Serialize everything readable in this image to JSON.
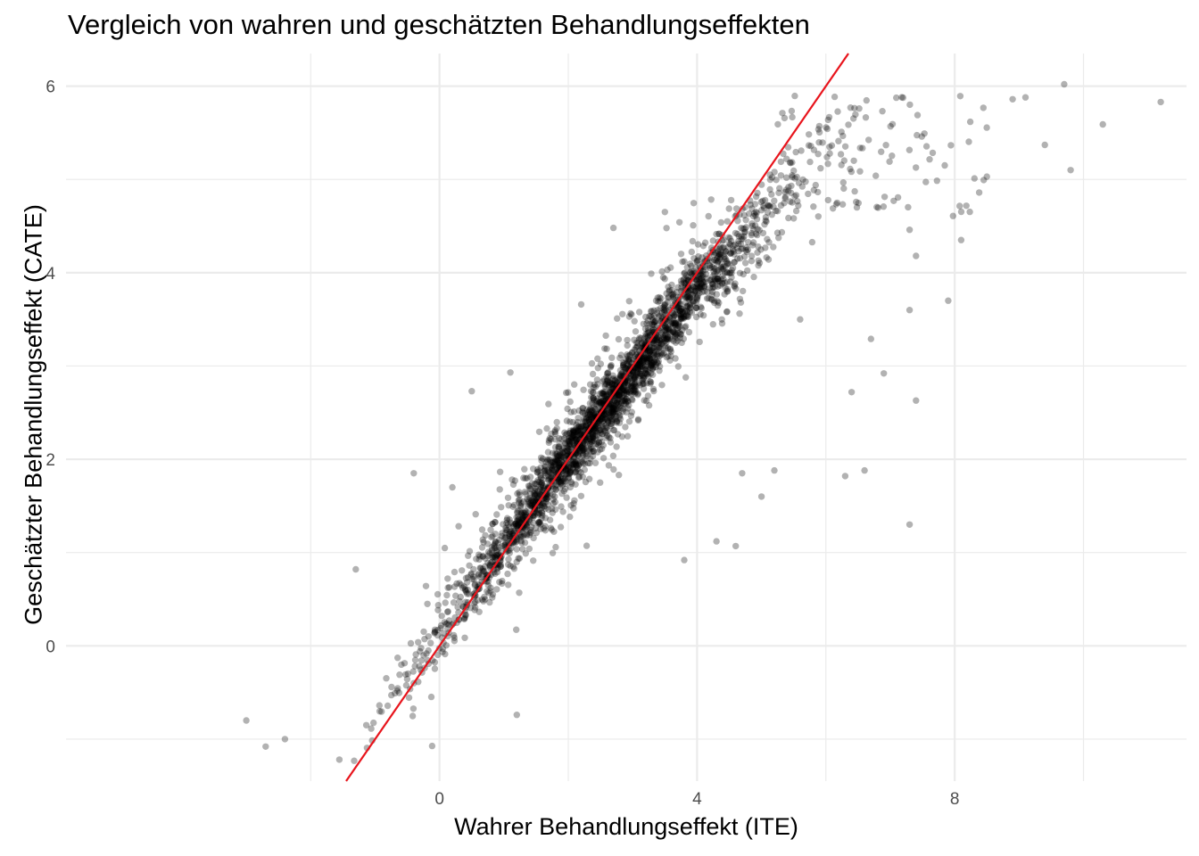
{
  "chart_data": {
    "type": "scatter",
    "title": "Vergleich von wahren und geschätzten Behandlungseffekten",
    "xlabel": "Wahrer Behandlungseffekt (ITE)",
    "ylabel": "Geschätzter Behandlungseffekt (CATE)",
    "xlim": [
      -5.8,
      11.6
    ],
    "ylim": [
      -1.45,
      6.35
    ],
    "x_ticks": [
      0,
      4,
      8
    ],
    "y_ticks": [
      0,
      2,
      4,
      6
    ],
    "x_minor_gridlines": [
      -2,
      2,
      6,
      10
    ],
    "y_minor_gridlines": [
      -1,
      1,
      3,
      5
    ],
    "grid": true,
    "point_color": "#000000",
    "point_alpha": 0.3,
    "reference_line": {
      "slope": 1,
      "intercept": 0,
      "color": "#e8141c"
    },
    "trend": {
      "slope": 0.93,
      "intercept": 0.15
    },
    "notable_points": [
      {
        "x": 9.7,
        "y": 6.02
      },
      {
        "x": 11.2,
        "y": 5.83
      },
      {
        "x": 10.3,
        "y": 5.59
      },
      {
        "x": 9.1,
        "y": 5.88
      },
      {
        "x": 9.4,
        "y": 5.37
      },
      {
        "x": 9.8,
        "y": 5.1
      },
      {
        "x": 8.5,
        "y": 5.03
      },
      {
        "x": 8.1,
        "y": 4.35
      },
      {
        "x": 7.3,
        "y": 4.46
      },
      {
        "x": 7.4,
        "y": 4.18
      },
      {
        "x": 7.9,
        "y": 3.7
      },
      {
        "x": 7.3,
        "y": 3.6
      },
      {
        "x": 7.4,
        "y": 2.63
      },
      {
        "x": 7.3,
        "y": 1.3
      },
      {
        "x": 6.6,
        "y": 1.88
      },
      {
        "x": 6.3,
        "y": 1.82
      },
      {
        "x": 6.9,
        "y": 2.92
      },
      {
        "x": 6.7,
        "y": 3.29
      },
      {
        "x": 6.4,
        "y": 2.72
      },
      {
        "x": 4.6,
        "y": 1.07
      },
      {
        "x": 4.3,
        "y": 1.12
      },
      {
        "x": 3.8,
        "y": 0.92
      },
      {
        "x": 2.7,
        "y": 4.48
      },
      {
        "x": 3.5,
        "y": 4.65
      },
      {
        "x": 2.2,
        "y": 3.66
      },
      {
        "x": 5.2,
        "y": 1.88
      },
      {
        "x": 4.7,
        "y": 1.85
      },
      {
        "x": 5.0,
        "y": 1.6
      },
      {
        "x": -3.0,
        "y": -0.8
      },
      {
        "x": -2.7,
        "y": -1.08
      },
      {
        "x": -2.4,
        "y": -1.0
      },
      {
        "x": -0.4,
        "y": -0.4
      },
      {
        "x": 1.2,
        "y": -0.74
      },
      {
        "x": -1.3,
        "y": 0.82
      },
      {
        "x": -0.4,
        "y": 1.85
      },
      {
        "x": 0.2,
        "y": 1.7
      },
      {
        "x": 1.1,
        "y": 2.93
      },
      {
        "x": 0.5,
        "y": 2.73
      },
      {
        "x": 5.6,
        "y": 3.5
      },
      {
        "x": 8.9,
        "y": 5.86
      }
    ]
  }
}
